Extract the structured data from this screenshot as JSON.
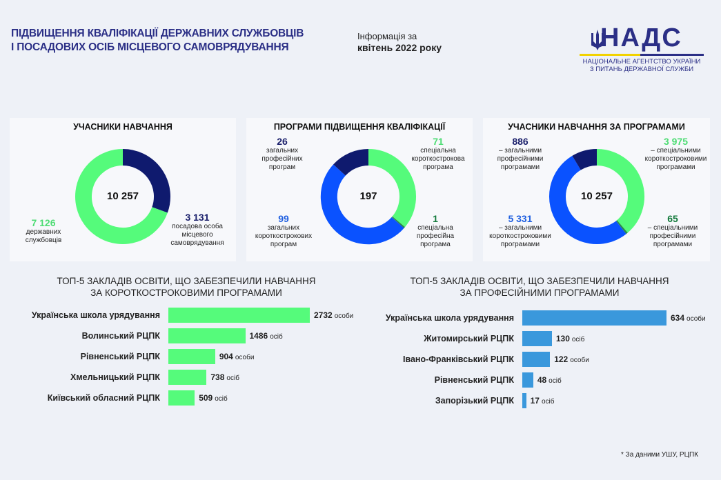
{
  "header": {
    "title_line1": "ПІДВИЩЕННЯ КВАЛІФІКАЦІЇ ДЕРЖАВНИХ СЛУЖБОВЦІВ",
    "title_line2": "І ПОСАДОВИХ ОСІБ МІСЦЕВОГО САМОВРЯДУВАННЯ",
    "info_line1": "Інформація за",
    "info_line2": "квітень 2022 року"
  },
  "logo": {
    "word": "НАДС",
    "sub_line1": "НАЦІОНАЛЬНЕ АГЕНТСТВО УКРАЇНИ",
    "sub_line2": "З ПИТАНЬ ДЕРЖАВНОЇ СЛУЖБИ",
    "colors": {
      "yellow": "#f2d200",
      "navy": "#2b2f86"
    }
  },
  "colors": {
    "green": "#55fb7b",
    "navy": "#0f1a6e",
    "blue": "#0a52ff",
    "bar_green": "#55fb7b",
    "bar_blue": "#3a98dc"
  },
  "chart_data": [
    {
      "type": "pie",
      "title": "УЧАСНИКИ НАВЧАННЯ",
      "total": "10 257",
      "slices": [
        {
          "name": "державних службовців",
          "value": 7126,
          "label_value": "7 126",
          "label_lines": [
            "державних",
            "службовців"
          ]
        },
        {
          "name": "посадова особа місцевого самоврядування",
          "value": 3131,
          "label_value": "3 131",
          "label_lines": [
            "посадова особа",
            "місцевого",
            "самоврядування"
          ]
        }
      ]
    },
    {
      "type": "pie",
      "title": "ПРОГРАМИ ПІДВИЩЕННЯ КВАЛІФІКАЦІЇ",
      "total": "197",
      "slices": [
        {
          "name": "загальних професійних програм",
          "value": 26,
          "label_value": "26",
          "label_lines": [
            "загальних",
            "професійних",
            "програм"
          ]
        },
        {
          "name": "спеціальна короткострокова програма",
          "value": 71,
          "label_value": "71",
          "label_lines": [
            "спеціальна",
            "короткострокова",
            "програма"
          ]
        },
        {
          "name": "загальних короткострокових програм",
          "value": 99,
          "label_value": "99",
          "label_lines": [
            "загальних",
            "короткострокових",
            "програм"
          ]
        },
        {
          "name": "спеціальна професійна програма",
          "value": 1,
          "label_value": "1",
          "label_lines": [
            "спеціальна",
            "професійна",
            "програма"
          ]
        }
      ]
    },
    {
      "type": "pie",
      "title": "УЧАСНИКИ НАВЧАННЯ ЗА ПРОГРАМАМИ",
      "total": "10 257",
      "slices": [
        {
          "name": "загальними професійними програмами",
          "value": 886,
          "label_value": "886",
          "label_lines": [
            "– загальними",
            "професійними",
            "програмами"
          ]
        },
        {
          "name": "спеціальними короткостроковими програмами",
          "value": 3975,
          "label_value": "3 975",
          "label_lines": [
            "– спеціальними",
            "короткостроковими",
            "програмами"
          ]
        },
        {
          "name": "загальними короткостроковими програмами",
          "value": 5331,
          "label_value": "5 331",
          "label_lines": [
            "– загальними",
            "короткостроковими",
            "програмами"
          ]
        },
        {
          "name": "спеціальними професійними програмами",
          "value": 65,
          "label_value": "65",
          "label_lines": [
            "– спеціальними",
            "професійними",
            "програмами"
          ]
        }
      ]
    },
    {
      "type": "bar",
      "title_line1": "ТОП-5 ЗАКЛАДІВ ОСВІТИ, ЩО ЗАБЕЗПЕЧИЛИ НАВЧАННЯ",
      "title_line2": "ЗА КОРОТКОСТРОКОВИМИ ПРОГРАМАМИ",
      "categories": [
        "Українська школа урядування",
        "Волинський РЦПК",
        "Рівненський РЦПК",
        "Хмельницький РЦПК",
        "Київський обласний РЦПК"
      ],
      "values": [
        2732,
        1486,
        904,
        738,
        509
      ],
      "units": [
        "особи",
        "осіб",
        "особи",
        "осіб",
        "осіб"
      ]
    },
    {
      "type": "bar",
      "title_line1": "ТОП-5 ЗАКЛАДІВ ОСВІТИ, ЩО ЗАБЕЗПЕЧИЛИ НАВЧАННЯ",
      "title_line2": "ЗА ПРОФЕСІЙНИМИ ПРОГРАМАМИ",
      "categories": [
        "Українська школа урядування",
        "Житомирський РЦПК",
        "Івано-Франківський РЦПК",
        "Рівненський РЦПК",
        "Запорізький РЦПК"
      ],
      "values": [
        634,
        130,
        122,
        48,
        17
      ],
      "units": [
        "особи",
        "осіб",
        "особи",
        "осіб",
        "осіб"
      ]
    }
  ],
  "footnote": "* За даними УШУ, РЦПК"
}
